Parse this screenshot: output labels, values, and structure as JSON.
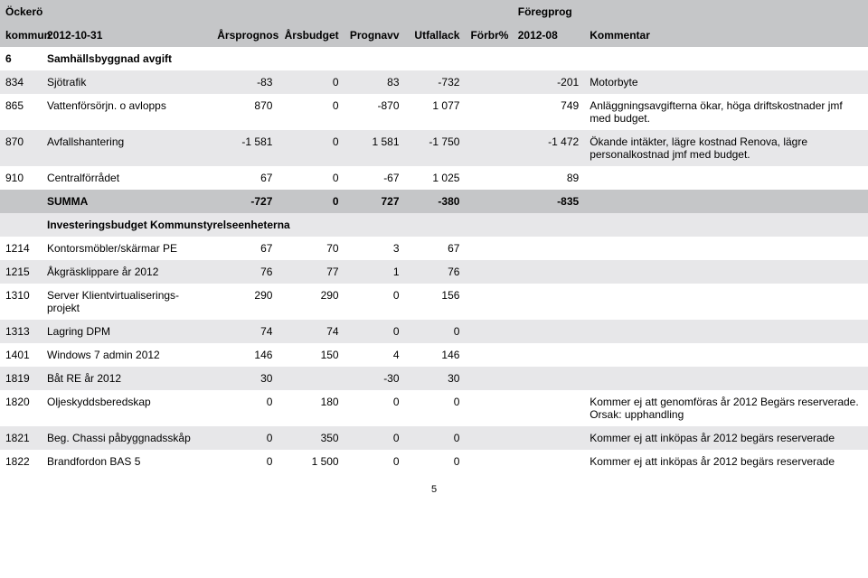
{
  "colors": {
    "header_bg": "#c5c6c8",
    "row_bg": "#ffffff",
    "row_alt_bg": "#e7e7e9",
    "text": "#000000"
  },
  "header": {
    "line1": [
      "Öckerö",
      "",
      "",
      "",
      "",
      "",
      "",
      "Föregprog",
      ""
    ],
    "line2": [
      "kommun",
      "2012-10-31",
      "Årsprognos",
      "Årsbudget",
      "Prognavv",
      "Utfallack",
      "Förbr%",
      "2012-08",
      "Kommentar"
    ]
  },
  "section": {
    "code": "6",
    "title": "Samhällsbyggnad avgift"
  },
  "rows": [
    {
      "shade": true,
      "c0": "834",
      "c1": "Sjötrafik",
      "c2": "-83",
      "c3": "0",
      "c4": "83",
      "c5": "-732",
      "c6": "",
      "c7": "-201",
      "c8": "Motorbyte"
    },
    {
      "shade": false,
      "c0": "865",
      "c1": "Vattenförsörjn. o avlopps",
      "c2": "870",
      "c3": "0",
      "c4": "-870",
      "c5": "1 077",
      "c6": "",
      "c7": "749",
      "c8": "Anläggningsavgifterna ökar, höga driftskostnader jmf med budget."
    },
    {
      "shade": true,
      "c0": "870",
      "c1": "Avfallshantering",
      "c2": "-1 581",
      "c3": "0",
      "c4": "1 581",
      "c5": "-1 750",
      "c6": "",
      "c7": "-1 472",
      "c8": "Ökande intäkter, lägre kostnad Renova, lägre personalkostnad jmf med budget."
    },
    {
      "shade": false,
      "c0": "910",
      "c1": "Centralförrådet",
      "c2": "67",
      "c3": "0",
      "c4": "-67",
      "c5": "1 025",
      "c6": "",
      "c7": "89",
      "c8": ""
    }
  ],
  "summa": {
    "label": "SUMMA",
    "c2": "-727",
    "c3": "0",
    "c4": "727",
    "c5": "-380",
    "c6": "",
    "c7": "-835",
    "c8": ""
  },
  "invest_title": "Investeringsbudget Kommunstyrelseenheterna",
  "invest_rows": [
    {
      "shade": false,
      "c0": "1214",
      "c1": "Kontorsmöbler/skärmar PE",
      "c2": "67",
      "c3": "70",
      "c4": "3",
      "c5": "67",
      "c6": "",
      "c7": "",
      "c8": ""
    },
    {
      "shade": true,
      "c0": "1215",
      "c1": "Åkgräsklippare år 2012",
      "c2": "76",
      "c3": "77",
      "c4": "1",
      "c5": "76",
      "c6": "",
      "c7": "",
      "c8": ""
    },
    {
      "shade": false,
      "c0": "1310",
      "c1": "Server Klientvirtualiserings-projekt",
      "c2": "290",
      "c3": "290",
      "c4": "0",
      "c5": "156",
      "c6": "",
      "c7": "",
      "c8": ""
    },
    {
      "shade": true,
      "c0": "1313",
      "c1": "Lagring DPM",
      "c2": "74",
      "c3": "74",
      "c4": "0",
      "c5": "0",
      "c6": "",
      "c7": "",
      "c8": ""
    },
    {
      "shade": false,
      "c0": "1401",
      "c1": "Windows 7 admin 2012",
      "c2": "146",
      "c3": "150",
      "c4": "4",
      "c5": "146",
      "c6": "",
      "c7": "",
      "c8": ""
    },
    {
      "shade": true,
      "c0": "1819",
      "c1": "Båt RE år 2012",
      "c2": "30",
      "c3": "",
      "c4": "-30",
      "c5": "30",
      "c6": "",
      "c7": "",
      "c8": ""
    },
    {
      "shade": false,
      "c0": "1820",
      "c1": "Oljeskyddsberedskap",
      "c2": "0",
      "c3": "180",
      "c4": "0",
      "c5": "0",
      "c6": "",
      "c7": "",
      "c8": "Kommer ej att genomföras år 2012 Begärs reserverade. Orsak: upphandling"
    },
    {
      "shade": true,
      "c0": "1821",
      "c1": "Beg. Chassi påbyggnadsskåp",
      "c2": "0",
      "c3": "350",
      "c4": "0",
      "c5": "0",
      "c6": "",
      "c7": "",
      "c8": "Kommer ej att inköpas år 2012 begärs reserverade"
    },
    {
      "shade": false,
      "c0": "1822",
      "c1": "Brandfordon BAS 5",
      "c2": "0",
      "c3": "1 500",
      "c4": "0",
      "c5": "0",
      "c6": "",
      "c7": "",
      "c8": "Kommer ej att inköpas år 2012 begärs reserverade"
    }
  ],
  "page_number": "5"
}
